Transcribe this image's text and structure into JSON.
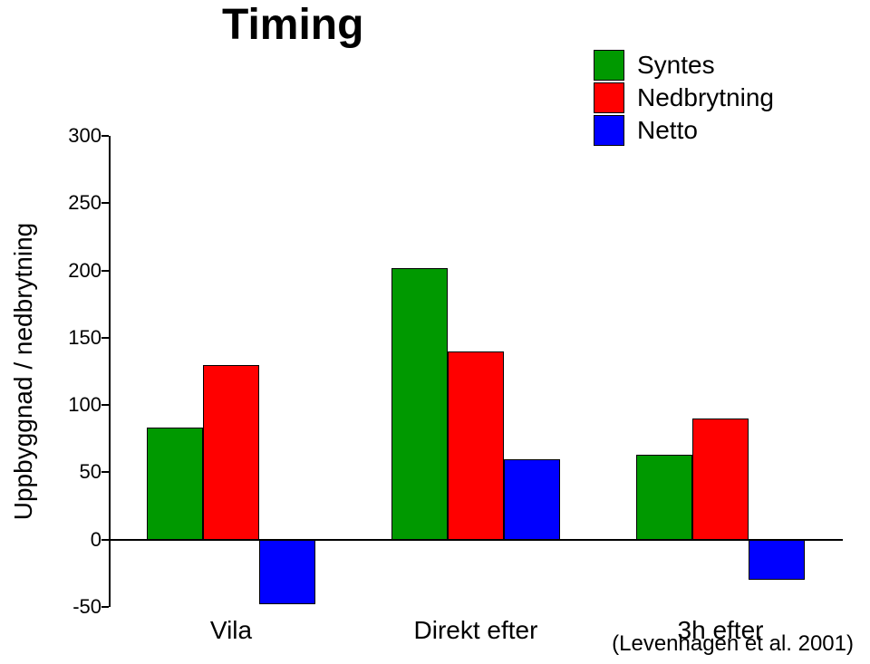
{
  "title": "Timing",
  "ylabel": "Uppbyggnad / nedbrytning",
  "legend": {
    "items": [
      {
        "label": "Syntes",
        "color": "#009900"
      },
      {
        "label": "Nedbrytning",
        "color": "#ff0000"
      },
      {
        "label": "Netto",
        "color": "#0000ff"
      }
    ]
  },
  "chart": {
    "type": "bar",
    "ylim": [
      -50,
      300
    ],
    "yticks": [
      -50,
      0,
      50,
      100,
      150,
      200,
      250,
      300
    ],
    "ytick_labels": [
      "-50",
      "0",
      "50",
      "100",
      "150",
      "200",
      "250",
      "300"
    ],
    "categories": [
      "Vila",
      "Direkt efter",
      "3h efter"
    ],
    "series": [
      {
        "name": "Syntes",
        "color": "#009900",
        "values": [
          83,
          202,
          63
        ]
      },
      {
        "name": "Nedbrytning",
        "color": "#ff0000",
        "values": [
          130,
          140,
          90
        ]
      },
      {
        "name": "Netto",
        "color": "#0000ff",
        "values": [
          -48,
          60,
          -30
        ]
      }
    ],
    "bar_width": 0.23,
    "group_gap": 0.22,
    "background_color": "#ffffff",
    "axis_color": "#000000",
    "label_fontsize": 28,
    "tick_fontsize": 22,
    "title_fontsize": 48
  },
  "citation": "(Levenhagen et al. 2001)"
}
